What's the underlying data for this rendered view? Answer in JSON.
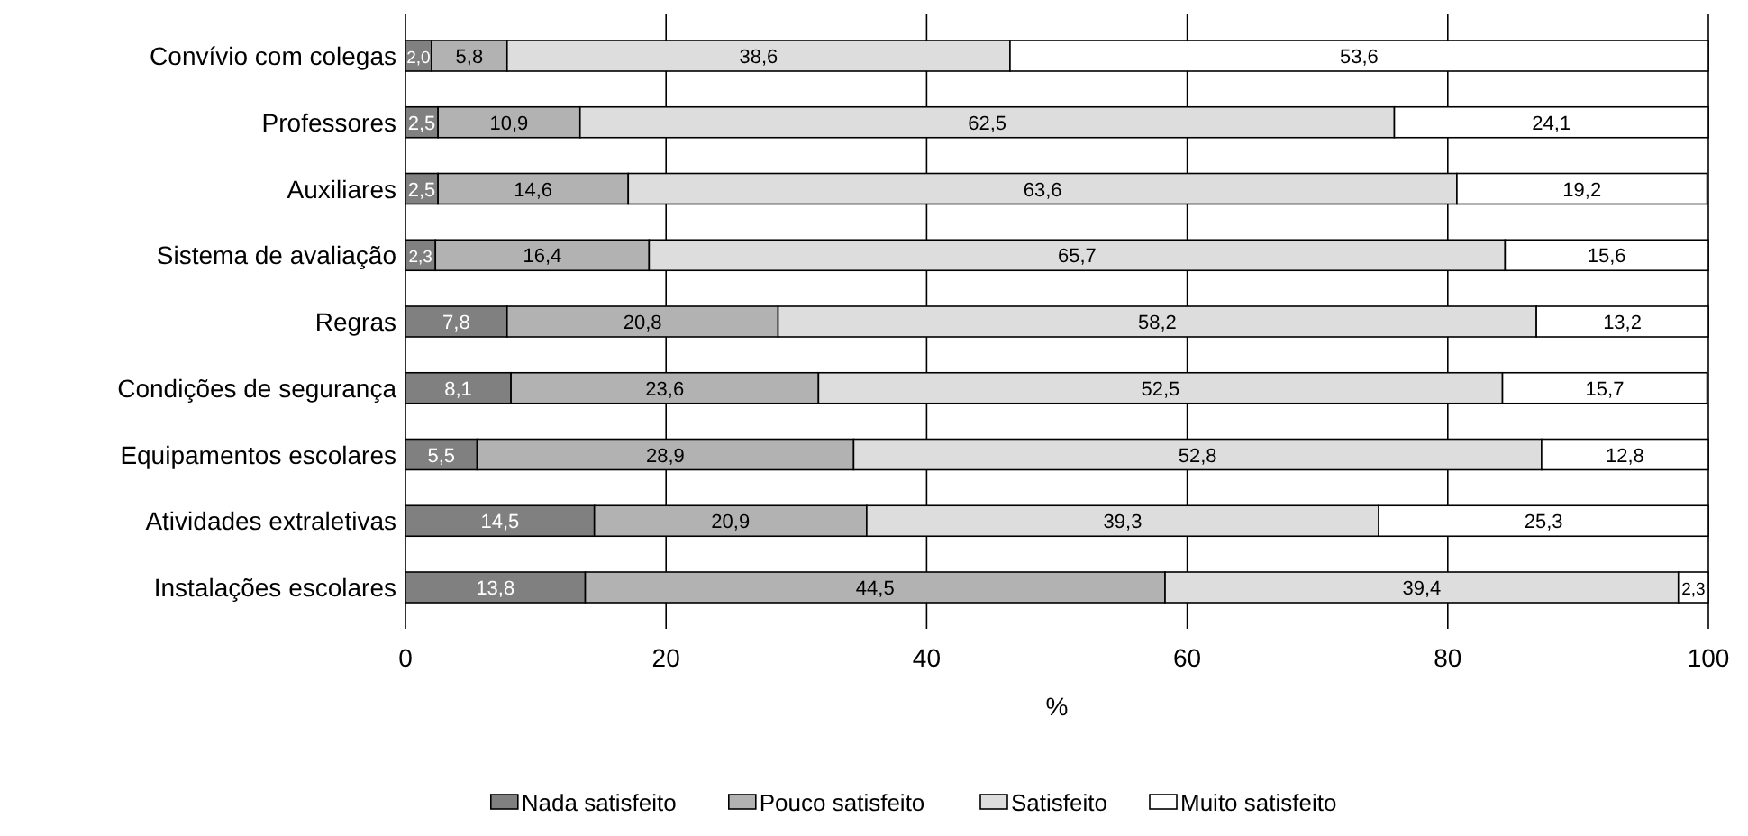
{
  "chart_data": {
    "type": "bar",
    "orientation": "horizontal",
    "stacked": true,
    "xlabel": "%",
    "categories": [
      "Convívio com colegas",
      "Professores",
      "Auxiliares",
      "Sistema de avaliação",
      "Regras",
      "Condições de segurança",
      "Equipamentos escolares",
      "Atividades extraletivas",
      "Instalações escolares"
    ],
    "series": [
      {
        "name": "Nada satisfeito",
        "color": "#808080",
        "values": [
          2.0,
          2.5,
          2.5,
          2.3,
          7.8,
          8.1,
          5.5,
          14.5,
          13.8
        ],
        "value_labels": [
          "2,0",
          "2,5",
          "2,5",
          "2,3",
          "7,8",
          "8,1",
          "5,5",
          "14,5",
          "13,8"
        ]
      },
      {
        "name": "Pouco satisfeito",
        "color": "#b2b2b2",
        "values": [
          5.8,
          10.9,
          14.6,
          16.4,
          20.8,
          23.6,
          28.9,
          20.9,
          44.5
        ],
        "value_labels": [
          "5,8",
          "10,9",
          "14,6",
          "16,4",
          "20,8",
          "23,6",
          "28,9",
          "20,9",
          "44,5"
        ]
      },
      {
        "name": "Satisfeito",
        "color": "#dddddd",
        "values": [
          38.6,
          62.5,
          63.6,
          65.7,
          58.2,
          52.5,
          52.8,
          39.3,
          39.4
        ],
        "value_labels": [
          "38,6",
          "62,5",
          "63,6",
          "65,7",
          "58,2",
          "52,5",
          "52,8",
          "39,3",
          "39,4"
        ]
      },
      {
        "name": "Muito satisfeito",
        "color": "#ffffff",
        "values": [
          53.6,
          24.1,
          19.2,
          15.6,
          13.2,
          15.7,
          12.8,
          25.3,
          2.3
        ],
        "value_labels": [
          "53,6",
          "24,1",
          "19,2",
          "15,6",
          "13,2",
          "15,7",
          "12,8",
          "25,3",
          "2,3"
        ]
      }
    ],
    "xlim": [
      0,
      100
    ],
    "xticks": [
      0,
      20,
      40,
      60,
      80,
      100
    ],
    "grid": "x",
    "legend": "bottom"
  }
}
